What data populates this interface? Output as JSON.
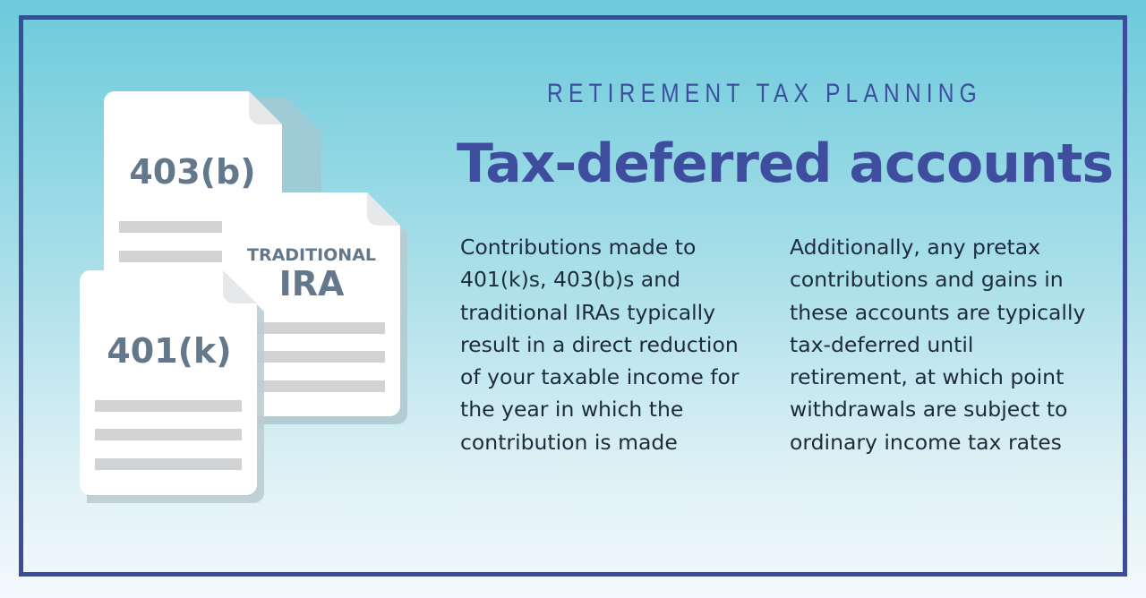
{
  "header": {
    "eyebrow": "RETIREMENT TAX PLANNING",
    "title": "Tax-deferred accounts"
  },
  "documents": [
    {
      "label": "403(b)"
    },
    {
      "label_small": "TRADITIONAL",
      "label": "IRA"
    },
    {
      "label": "401(k)"
    }
  ],
  "columns": [
    {
      "text": "Contributions made to 401(k)s, 403(b)s and traditional IRAs typically result in a direct reduction of your taxable income for the year in which the contribution is made"
    },
    {
      "text": "Additionally, any pretax contributions and gains in these accounts are typically tax-deferred until retirement, at which point withdrawals are subject to ordinary income tax rates"
    }
  ],
  "colors": {
    "frame": "#3d4b9b",
    "title": "#3f4d9e",
    "body_text": "#1e2b3b",
    "doc_label": "#63788a"
  }
}
